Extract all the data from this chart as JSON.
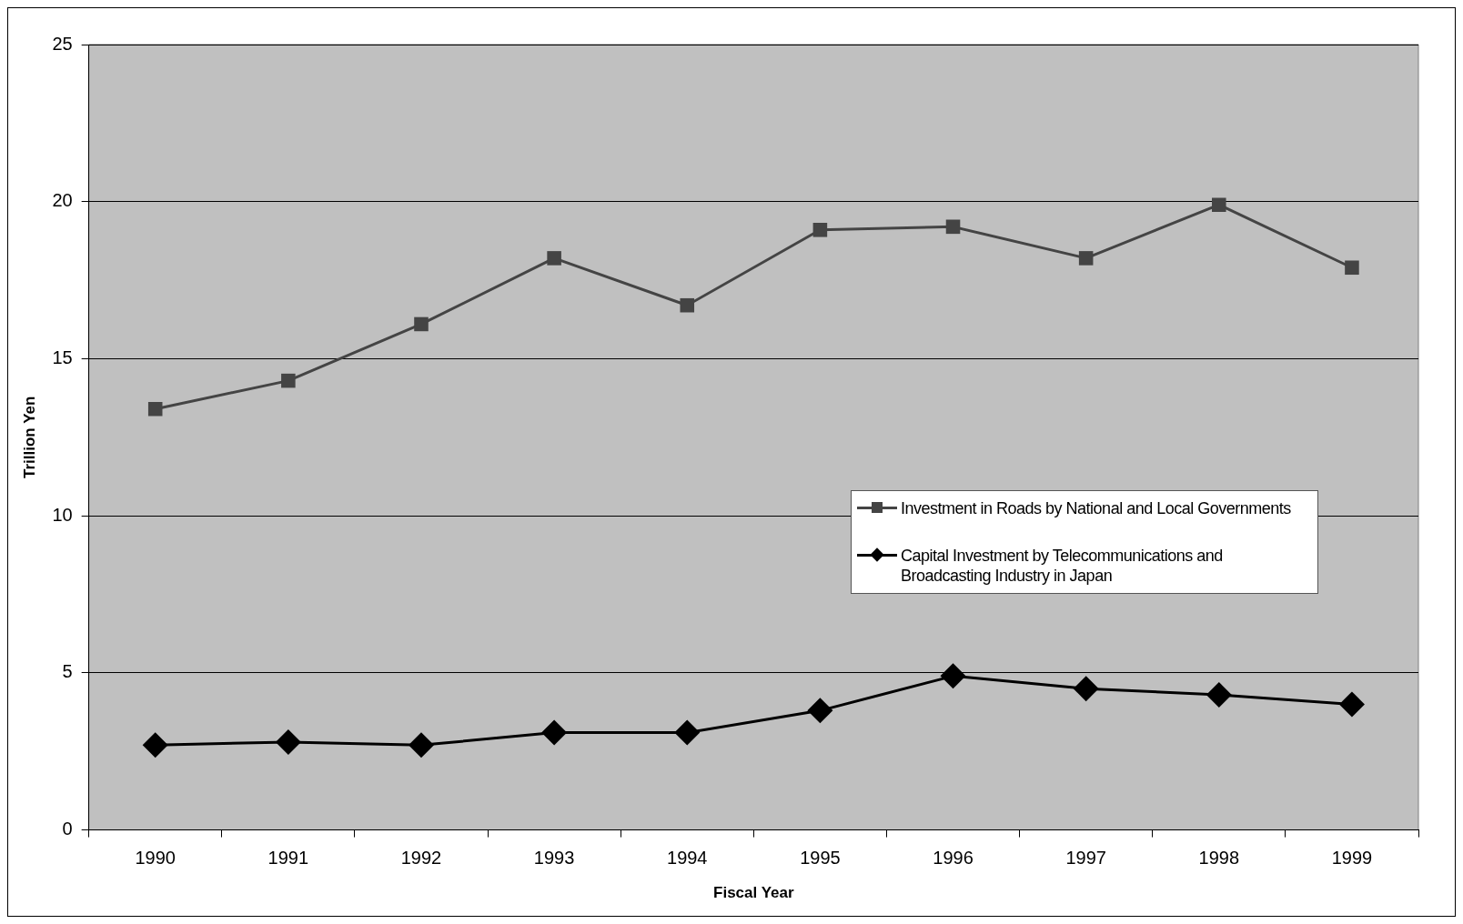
{
  "chart_data": {
    "type": "line",
    "xlabel": "Fiscal Year",
    "ylabel": "Trillion Yen",
    "categories": [
      "1990",
      "1991",
      "1992",
      "1993",
      "1994",
      "1995",
      "1996",
      "1997",
      "1998",
      "1999"
    ],
    "series": [
      {
        "name": "Investment in Roads by National and Local Governments",
        "color": "#444444",
        "marker": "square",
        "values": [
          13.4,
          14.3,
          16.1,
          18.2,
          16.7,
          19.1,
          19.2,
          18.2,
          19.9,
          17.9
        ]
      },
      {
        "name": "Capital Investment by Telecommunications and Broadcasting Industry in Japan",
        "color": "#000000",
        "marker": "diamond",
        "values": [
          2.7,
          2.8,
          2.7,
          3.1,
          3.1,
          3.8,
          4.9,
          4.5,
          4.3,
          4.0
        ]
      }
    ],
    "ylim": [
      0,
      25
    ],
    "yticks": [
      0,
      5,
      10,
      15,
      20,
      25
    ],
    "grid": "y",
    "legend": "right",
    "line_style": "solid"
  }
}
